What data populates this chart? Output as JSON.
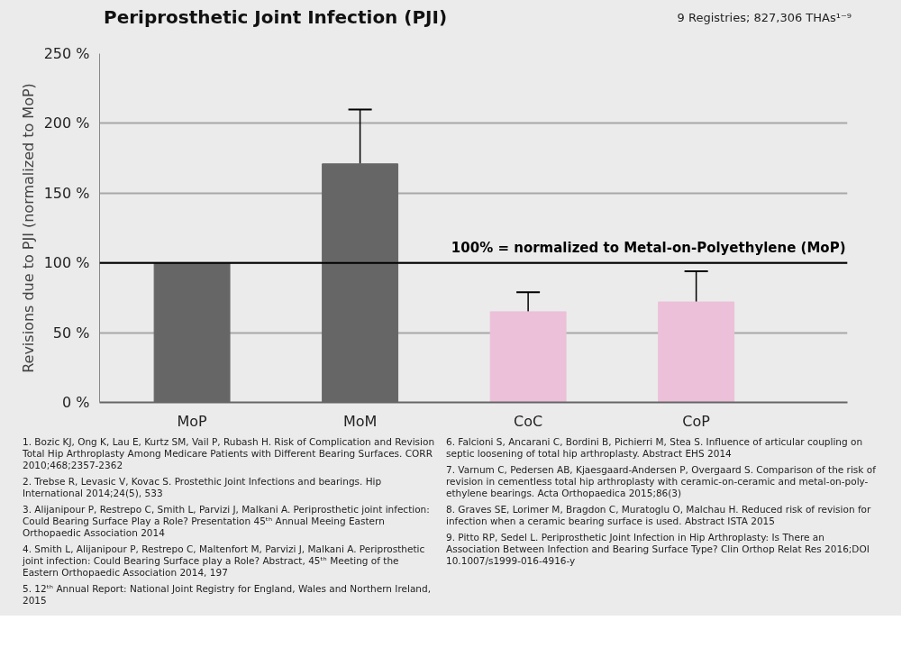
{
  "chart_data": {
    "type": "bar",
    "title": "Periprosthetic Joint Infection (PJI)",
    "subtitle": "9 Registries; 827,306 THAs¹⁻⁹",
    "ylabel": "Revisions due to PJI (normalized to MoP)",
    "categories": [
      "MoP",
      "MoM",
      "CoC",
      "CoP"
    ],
    "values": [
      100,
      171,
      65,
      72
    ],
    "colors": [
      "#666666",
      "#666666",
      "#ebc0d8",
      "#ebc0d8"
    ],
    "errors": [
      null,
      [
        171,
        210
      ],
      [
        65,
        79
      ],
      [
        72,
        94
      ]
    ],
    "ylim": [
      0,
      250
    ],
    "yticks": [
      {
        "value": 0,
        "label": "0 %"
      },
      {
        "value": 50,
        "label": "50 %"
      },
      {
        "value": 100,
        "label": "100 %"
      },
      {
        "value": 150,
        "label": "150 %"
      },
      {
        "value": 200,
        "label": "200 %"
      },
      {
        "value": 250,
        "label": "250 %"
      }
    ],
    "grid": "y",
    "ref_lines": [
      {
        "axis": "y",
        "value": 100,
        "label": "100% = normalized to Metal-on-Polyethylene (MoP)",
        "color": "#000000"
      }
    ],
    "annotations": [
      "1. Bozic KJ, Ong K, Lau E, Kurtz SM, Vail P, Rubash H. Risk of Complication and Revision Total Hip Arthroplasty Among Medicare Patients with Different Bearing Surfaces. CORR 2010;468;2357-2362",
      "2. Trebse R, Levasic V, Kovac S. Prostethic Joint Infections and bearings. Hip International 2014;24(5), 533",
      "3. Alijanipour P, Restrepo C, Smith L, Parvizi J, Malkani A. Periprosthetic joint infection: Could Bearing Surface Play a Role? Presentation 45ᵗʰ Annual Meeing Eastern Orthopaedic Association 2014",
      "4. Smith L, Alijanipour P, Restrepo C, Maltenfort M, Parvizi J, Malkani A. Periprosthetic joint infection: Could Bearing Surface play a Role? Abstract, 45ᵗʰ Meeting of the Eastern Orthopaedic Association 2014, 197",
      "5. 12ᵗʰ Annual Report: National Joint Registry for England, Wales and Northern Ireland, 2015",
      "6. Falcioni S, Ancarani C, Bordini B, Pichierri M, Stea S. Influence of articular coupling on septic loosening of total hip arthroplasty. Abstract EHS 2014",
      "7. Varnum C, Pedersen AB, Kjaesgaard-Andersen P, Overgaard S. Comparison of the risk of revision in cementless total hip arthroplasty with ceramic-on-ceramic and metal-on-poly-ethylene bearings. Acta Orthopaedica 2015;86(3)",
      "8. Graves SE, Lorimer M, Bragdon C, Muratoglu O, Malchau H. Reduced risk of revision for infection when a ceramic bearing surface is used. Abstract ISTA 2015",
      "9. Pitto RP, Sedel L. Periprosthetic Joint Infection in Hip Arthroplasty: Is There an Association Between Infection and Bearing Surface Type? Clin Orthop Relat Res 2016;DOI 10.1007/s1999-016-4916-y"
    ]
  }
}
